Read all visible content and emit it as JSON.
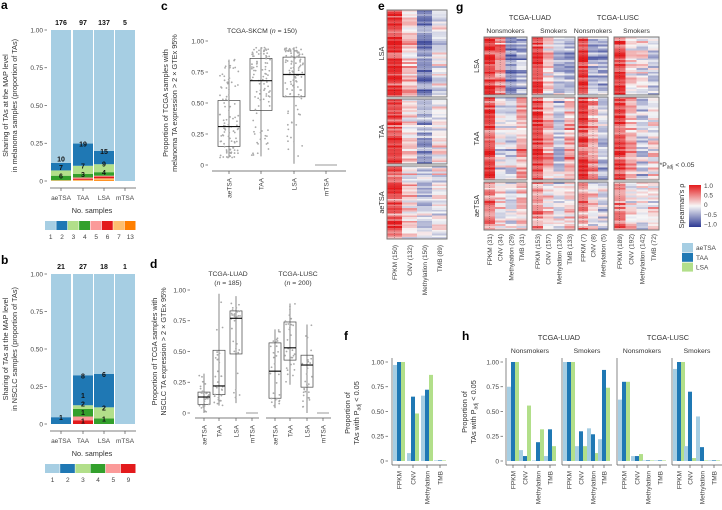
{
  "panel_labels": {
    "a": "a",
    "b": "b",
    "c": "c",
    "d": "d",
    "e": "e",
    "f": "f",
    "g": "g",
    "h": "h"
  },
  "legend": {
    "series": [
      {
        "label": "aeTSA",
        "color": "#a6cee3"
      },
      {
        "label": "TAA",
        "color": "#1f78b4"
      },
      {
        "label": "LSA",
        "color": "#b2df8a"
      }
    ],
    "colorbar": {
      "title": "Spearman's ρ",
      "ticks": [
        "1.0",
        "0.5",
        "0",
        "−0.5",
        "−1.0"
      ],
      "sig": {
        "pre": "*P",
        "sub": "adj",
        "post": " < 0.05"
      },
      "colors": {
        "neg": "#2d3a93",
        "mid": "#f7f7f7",
        "pos": "#e41a1c"
      }
    }
  },
  "chart_data": [
    {
      "id": "a",
      "type": "bar",
      "stacked": true,
      "categories": [
        "aeTSA",
        "TAA",
        "LSA",
        "mTSA"
      ],
      "ylabel_lines": [
        "Sharing of TAs at the MAP level",
        "in melanoma samples (proportion of TAs)"
      ],
      "xlabel": "No. samples",
      "yticks": [
        "0",
        "0.25",
        "0.50",
        "0.75",
        "1.00"
      ],
      "ylim": [
        0,
        1
      ],
      "levels": [
        "1",
        "2",
        "3",
        "4",
        "5",
        "6",
        "7",
        "13"
      ],
      "level_colors": [
        "#a6cee3",
        "#1f78b4",
        "#b2df8a",
        "#33a02c",
        "#fb9a99",
        "#e31a1c",
        "#fdbf6f",
        "#ff7f00"
      ],
      "counts": [
        [
          176,
          10,
          7,
          6,
          0,
          0,
          1,
          0
        ],
        [
          97,
          19,
          7,
          3,
          1,
          1,
          1,
          0
        ],
        [
          137,
          15,
          9,
          4,
          1,
          2,
          2,
          1
        ],
        [
          5,
          0,
          0,
          0,
          0,
          0,
          0,
          0
        ]
      ]
    },
    {
      "id": "b",
      "type": "bar",
      "stacked": true,
      "categories": [
        "aeTSA",
        "TAA",
        "LSA",
        "mTSA"
      ],
      "ylabel_lines": [
        "Sharing of TAs at the MAP level",
        "in NSCLC samples (proportion of TAs)"
      ],
      "xlabel": "No. samples",
      "yticks": [
        "0",
        "0.25",
        "0.50",
        "0.75",
        "1.00"
      ],
      "ylim": [
        0,
        1
      ],
      "levels": [
        "1",
        "2",
        "3",
        "4",
        "5",
        "9"
      ],
      "level_colors": [
        "#a6cee3",
        "#1f78b4",
        "#b2df8a",
        "#33a02c",
        "#fb9a99",
        "#e31a1c"
      ],
      "counts": [
        [
          21,
          1,
          0,
          0,
          0,
          0
        ],
        [
          27,
          8,
          1,
          2,
          1,
          1
        ],
        [
          18,
          6,
          2,
          1,
          0,
          0
        ],
        [
          1,
          0,
          0,
          0,
          0,
          0
        ]
      ]
    },
    {
      "id": "c",
      "type": "box",
      "title": {
        "name": "TCGA-SKCM",
        "n_pre": " (",
        "n_it": "n",
        "n_post": " = 150)"
      },
      "ylabel_lines": [
        "Proportion of TCGA samples with",
        "melanoma TA expression > 2 × GTEx 95%"
      ],
      "yticks": [
        "0",
        "0.25",
        "0.50",
        "0.75",
        "1.00"
      ],
      "ylim": [
        0,
        1
      ],
      "categories": [
        "aeTSA",
        "TAA",
        "LSA",
        "mTSA"
      ],
      "boxes": [
        [
          0.06,
          0.15,
          0.31,
          0.52,
          0.85
        ],
        [
          0.07,
          0.44,
          0.68,
          0.86,
          0.95
        ],
        [
          0.01,
          0.55,
          0.73,
          0.87,
          0.95
        ],
        [
          0,
          0,
          0,
          0,
          0
        ]
      ]
    },
    {
      "id": "d",
      "type": "box",
      "ylabel_lines": [
        "Proportion of TCGA samples with",
        "NSCLC TA expression > 2 × GTEx 95%"
      ],
      "yticks": [
        "0",
        "0.25",
        "0.50",
        "0.75",
        "1.00"
      ],
      "ylim": [
        0,
        1
      ],
      "groups": [
        {
          "title": {
            "name": "TCGA-LUAD",
            "n_pre": "(",
            "n_it": "n",
            "n_post": " = 185)"
          },
          "categories": [
            "aeTSA",
            "TAA",
            "LSA",
            "mTSA"
          ],
          "boxes": [
            [
              0.0,
              0.07,
              0.13,
              0.17,
              0.32
            ],
            [
              0.06,
              0.15,
              0.22,
              0.51,
              0.97
            ],
            [
              0.08,
              0.48,
              0.77,
              0.83,
              0.95
            ],
            [
              0,
              0,
              0,
              0,
              0
            ]
          ]
        },
        {
          "title": {
            "name": "TCGA-LUSC",
            "n_pre": "(",
            "n_it": "n",
            "n_post": " = 200)"
          },
          "categories": [
            "aeTSA",
            "TAA",
            "LSA",
            "mTSA"
          ],
          "boxes": [
            [
              0.04,
              0.12,
              0.34,
              0.57,
              0.68
            ],
            [
              0.23,
              0.43,
              0.53,
              0.74,
              0.89
            ],
            [
              0.0,
              0.21,
              0.39,
              0.47,
              0.72
            ],
            [
              0,
              0,
              0,
              0,
              0
            ]
          ]
        }
      ]
    },
    {
      "id": "e",
      "type": "heatmap",
      "row_groups": [
        "LSA",
        "TAA",
        "aeTSA"
      ],
      "columns": [
        "FPKM (150)",
        "CNV (132)",
        "Methylation (150)",
        "TMB (89)"
      ],
      "n_rows": [
        45,
        35,
        40
      ],
      "mean_rho": [
        [
          0.85,
          0.25,
          -0.55,
          -0.05
        ],
        [
          0.85,
          0.2,
          -0.45,
          0.05
        ],
        [
          0.7,
          0.15,
          -0.2,
          0.0
        ]
      ]
    },
    {
      "id": "f",
      "type": "bar",
      "ylabel_lines": [
        "Proportion of",
        {
          "pre": "TAs with P",
          "sub": "adj",
          "post": " < 0.05"
        }
      ],
      "yticks": [
        "0",
        "0.25",
        "0.50",
        "0.75",
        "1.00"
      ],
      "ylim": [
        0,
        1
      ],
      "categories": [
        "FPKM",
        "CNV",
        "Methylation",
        "TMB"
      ],
      "series_names": [
        "aeTSA",
        "TAA",
        "LSA"
      ],
      "values": [
        [
          0.97,
          1.0,
          1.0
        ],
        [
          0.08,
          0.65,
          0.48
        ],
        [
          0.66,
          0.72,
          0.87
        ],
        [
          0.0,
          0.0,
          0.0
        ]
      ]
    },
    {
      "id": "g",
      "type": "heatmap",
      "row_groups": [
        "LSA",
        "TAA",
        "aeTSA"
      ],
      "n_rows": [
        30,
        40,
        25
      ],
      "cohorts": [
        {
          "name": "TCGA-LUAD",
          "subsets": [
            {
              "name": "Nonsmokers",
              "columns": [
                "FPKM (31)",
                "CNV (34)",
                "Methylation (29)",
                "TMB (31)"
              ],
              "mean_rho": [
                [
                  0.8,
                  0.45,
                  -0.45,
                  -0.35
                ],
                [
                  0.75,
                  -0.05,
                  -0.15,
                  0.35
                ],
                [
                  0.5,
                  0.1,
                  -0.1,
                  0.2
                ]
              ]
            },
            {
              "name": "Smokers",
              "columns": [
                "FPKM (153)",
                "CNV (157)",
                "Methylation (130)",
                "TMB (133)"
              ],
              "mean_rho": [
                [
                  0.8,
                  0.1,
                  -0.2,
                  -0.3
                ],
                [
                  0.8,
                  0.3,
                  -0.3,
                  0.35
                ],
                [
                  0.5,
                  0.1,
                  -0.1,
                  0.2
                ]
              ]
            }
          ]
        },
        {
          "name": "TCGA-LUSC",
          "subsets": [
            {
              "name": "Nonsmokers",
              "columns": [
                "FPKM (7)",
                "CNV (8)",
                "Methylation (5)"
              ],
              "mean_rho": [
                [
                  0.8,
                  -0.35,
                  -0.35
                ],
                [
                  0.85,
                  0.4,
                  -0.3
                ],
                [
                  0.5,
                  0.1,
                  -0.2
                ]
              ]
            },
            {
              "name": "Smokers",
              "columns": [
                "FPKM (189)",
                "CNV (192)",
                "Methylation (142)",
                "TMB (72)"
              ],
              "mean_rho": [
                [
                  0.8,
                  0.1,
                  0.0,
                  -0.2
                ],
                [
                  0.8,
                  0.35,
                  -0.2,
                  0.1
                ],
                [
                  0.5,
                  0.1,
                  -0.1,
                  0.1
                ]
              ]
            }
          ]
        }
      ]
    },
    {
      "id": "h",
      "type": "bar",
      "ylabel_lines": [
        "Proportion of",
        {
          "pre": "TAs with P",
          "sub": "adj",
          "post": " < 0.05"
        }
      ],
      "yticks": [
        "0",
        "0.25",
        "0.50",
        "0.75",
        "1.00"
      ],
      "ylim": [
        0,
        1
      ],
      "series_names": [
        "aeTSA",
        "TAA",
        "LSA"
      ],
      "cohorts": [
        {
          "name": "TCGA-LUAD",
          "subsets": [
            {
              "name": "Nonsmokers",
              "categories": [
                "FPKM",
                "CNV",
                "Methylation",
                "TMB"
              ],
              "values": [
                [
                  0.75,
                  1.0,
                  1.0
                ],
                [
                  0.11,
                  0.05,
                  0.56
                ],
                [
                  0.0,
                  0.19,
                  0.32
                ],
                [
                  0.05,
                  0.32,
                  0.15
                ]
              ]
            },
            {
              "name": "Smokers",
              "categories": [
                "FPKM",
                "CNV",
                "Methylation",
                "TMB"
              ],
              "values": [
                [
                  1.0,
                  1.0,
                  1.0
                ],
                [
                  0.15,
                  0.3,
                  0.15
                ],
                [
                  0.33,
                  0.27,
                  0.08
                ],
                [
                  0.22,
                  0.92,
                  0.74
                ]
              ]
            }
          ]
        },
        {
          "name": "TCGA-LUSC",
          "subsets": [
            {
              "name": "Nonsmokers",
              "categories": [
                "FPKM",
                "CNV",
                "Methylation",
                "TMB"
              ],
              "values": [
                [
                  0.62,
                  0.8,
                  0.8
                ],
                [
                  0.05,
                  0.05,
                  0.07
                ],
                [
                  0.0,
                  0.0,
                  0.0
                ],
                [
                  0.0,
                  0.0,
                  0.0
                ]
              ]
            },
            {
              "name": "Smokers",
              "categories": [
                "FPKM",
                "CNV",
                "Methylation",
                "TMB"
              ],
              "values": [
                [
                  0.93,
                  1.0,
                  1.0
                ],
                [
                  0.15,
                  0.7,
                  0.03
                ],
                [
                  0.45,
                  0.14,
                  0.0
                ],
                [
                  0.0,
                  0.0,
                  0.0
                ]
              ]
            }
          ]
        }
      ]
    }
  ]
}
